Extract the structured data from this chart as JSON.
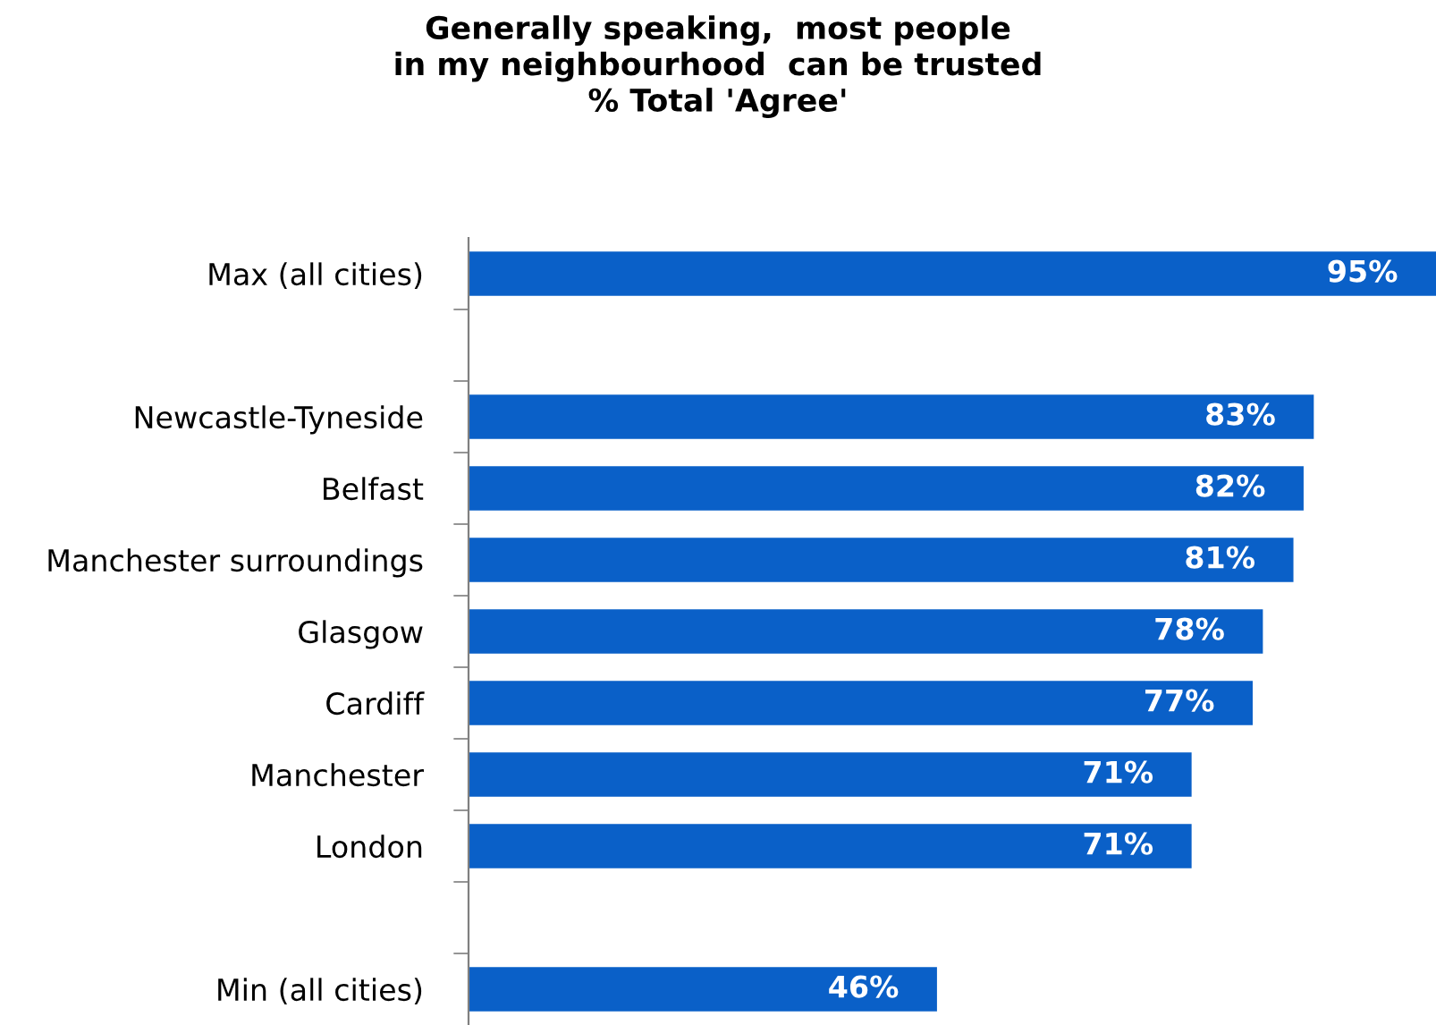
{
  "chart_data": {
    "type": "bar",
    "orientation": "horizontal",
    "title": "Generally speaking,  most people\nin my neighbourhood  can be trusted\n% Total 'Agree'",
    "categories": [
      "Max (all cities)",
      null,
      "Newcastle-Tyneside",
      "Belfast",
      "Manchester surroundings",
      "Glasgow",
      "Cardiff",
      "Manchester",
      "London",
      null,
      "Min (all cities)"
    ],
    "values": [
      95,
      null,
      83,
      82,
      81,
      78,
      77,
      71,
      71,
      null,
      46
    ],
    "value_labels": [
      "95%",
      null,
      "83%",
      "82%",
      "81%",
      "78%",
      "77%",
      "71%",
      "71%",
      null,
      "46%"
    ],
    "color": "#0a60c8",
    "grid": false,
    "legend": false
  }
}
